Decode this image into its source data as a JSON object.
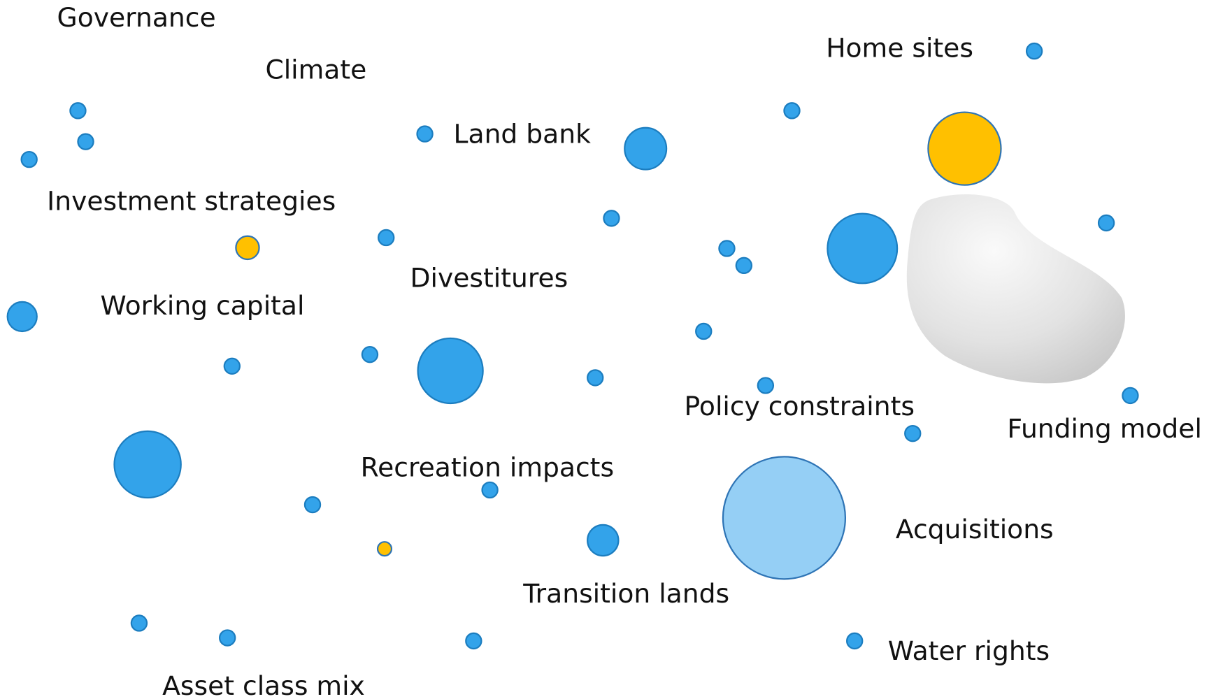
{
  "labels": [
    "Governance",
    "Climate",
    "Land bank",
    "Home sites",
    "Investment strategies",
    "Divestitures",
    "Working capital",
    "Policy constraints",
    "Funding model",
    "Recreation impacts",
    "Acquisitions",
    "Transition lands",
    "Water rights",
    "Asset class mix"
  ]
}
